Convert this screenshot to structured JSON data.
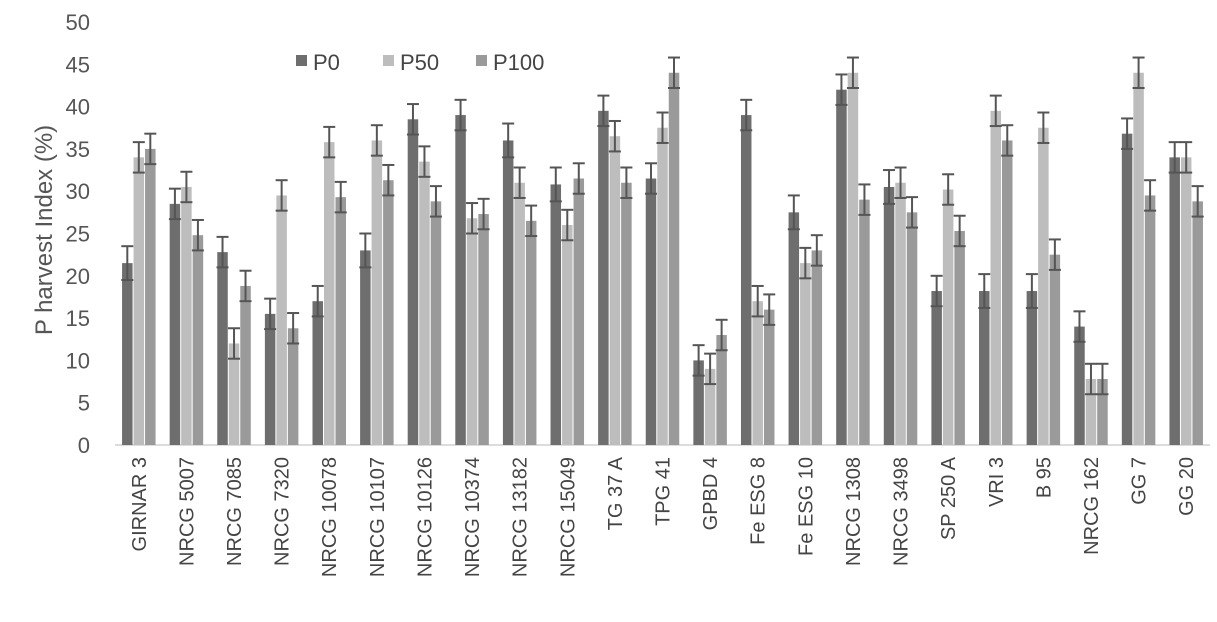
{
  "chart_data": {
    "type": "bar",
    "title": "",
    "xlabel": "",
    "ylabel": "P harvest Index (%)",
    "ylim": [
      0,
      50
    ],
    "yticks": [
      0,
      5,
      10,
      15,
      20,
      25,
      30,
      35,
      40,
      45,
      50
    ],
    "grid": false,
    "legend_position": "top",
    "categories": [
      "GIRNAR 3",
      "NRCG 5007",
      "NRCG 7085",
      "NRCG 7320",
      "NRCG 10078",
      "NRCG 10107",
      "NRCG 10126",
      "NRCG 10374",
      "NRCG 13182",
      "NRCG 15049",
      "TG 37 A",
      "TPG 41",
      "GPBD 4",
      "Fe ESG 8",
      "Fe ESG 10",
      "NRCG 1308",
      "NRCG 3498",
      "SP 250 A",
      "VRI 3",
      "B 95",
      "NRCG 162",
      "GG 7",
      "GG 20"
    ],
    "series": [
      {
        "name": "P0",
        "color": "#6e6e6e",
        "values": [
          21.5,
          28.5,
          22.8,
          15.5,
          17.0,
          23.0,
          38.5,
          39.0,
          36.0,
          30.8,
          39.5,
          31.5,
          10.0,
          39.0,
          27.5,
          42.0,
          30.5,
          18.2,
          18.2,
          18.2,
          14.0,
          36.8,
          34.0
        ],
        "errors": [
          2.0,
          1.8,
          1.8,
          1.8,
          1.8,
          2.0,
          1.8,
          1.8,
          2.0,
          2.0,
          1.8,
          1.8,
          1.8,
          1.8,
          2.0,
          1.8,
          2.0,
          1.8,
          2.0,
          2.0,
          1.8,
          1.8,
          1.8
        ]
      },
      {
        "name": "P50",
        "color": "#bdbdbd",
        "values": [
          34.0,
          30.5,
          12.0,
          29.5,
          35.8,
          36.0,
          33.5,
          26.8,
          31.0,
          26.0,
          36.5,
          37.5,
          9.0,
          17.0,
          21.5,
          44.0,
          31.0,
          30.2,
          39.5,
          37.5,
          7.8,
          44.0,
          34.0
        ],
        "errors": [
          1.8,
          1.8,
          1.8,
          1.8,
          1.8,
          1.8,
          1.8,
          1.8,
          1.8,
          1.8,
          1.8,
          1.8,
          1.8,
          1.8,
          1.8,
          1.8,
          1.8,
          1.8,
          1.8,
          1.8,
          1.8,
          1.8,
          1.8
        ]
      },
      {
        "name": "P100",
        "color": "#9a9a9a",
        "values": [
          35.0,
          24.8,
          18.8,
          13.8,
          29.3,
          31.3,
          28.8,
          27.3,
          26.5,
          31.5,
          31.0,
          44.0,
          13.0,
          16.0,
          23.0,
          29.0,
          27.5,
          25.3,
          36.0,
          22.5,
          7.8,
          29.5,
          28.8
        ],
        "errors": [
          1.8,
          1.8,
          1.8,
          1.8,
          1.8,
          1.8,
          1.8,
          1.8,
          1.8,
          1.8,
          1.8,
          1.8,
          1.8,
          1.8,
          1.8,
          1.8,
          1.8,
          1.8,
          1.8,
          1.8,
          1.8,
          1.8,
          1.8
        ]
      }
    ]
  }
}
